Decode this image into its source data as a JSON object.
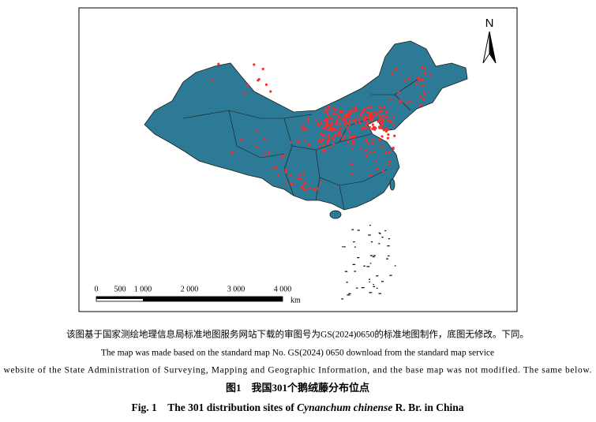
{
  "map": {
    "north": "N",
    "scale": {
      "labels": [
        "0",
        "500",
        "1 000",
        "2 000",
        "3 000",
        "4 000"
      ],
      "unit": "km"
    }
  },
  "caption": {
    "chinese_note": "该图基于国家测绘地理信息局标准地图服务网站下载的审图号为GS(2024)0650的标准地图制作，底图无修改。下同。",
    "english_note_1": "The map was made based on the standard map No. GS(2024) 0650 download from the standard map service",
    "english_note_2": "website of the State Administration of Surveying, Mapping and Geographic Information, and the base map was not modified. The same below.",
    "chinese_title": "图1　我国301个鹅绒藤分布位点",
    "english_title": {
      "prefix": "Fig. 1　The 301 distribution sites of ",
      "species": "Cynanchum chinense",
      "suffix": " R. Br. in China"
    }
  }
}
